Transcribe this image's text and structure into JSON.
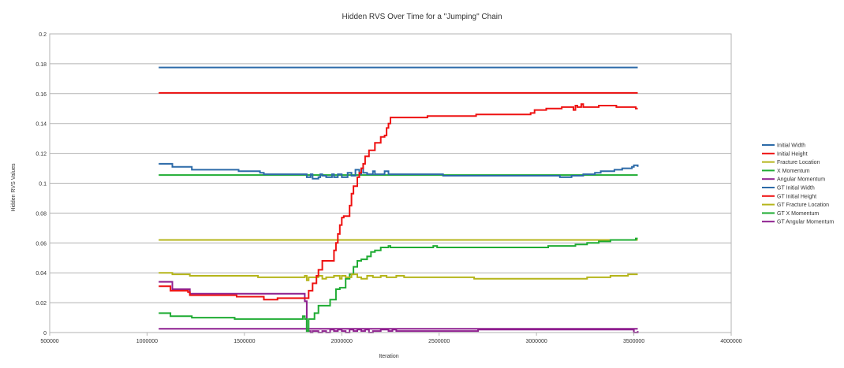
{
  "chart_data": {
    "type": "line",
    "title": "Hidden RVS Over Time for a \"Jumping\" Chain",
    "xlabel": "Iteration",
    "ylabel": "Hidden RVS Values",
    "xlim": [
      500000,
      4000000
    ],
    "ylim": [
      0,
      0.2
    ],
    "x_ticks": [
      500000,
      1000000,
      1500000,
      2000000,
      2500000,
      3000000,
      3500000,
      4000000
    ],
    "x_tick_labels": [
      "500000",
      "1000000",
      "1500000",
      "2000000",
      "2500000",
      "3000000",
      "3500000",
      "4000000"
    ],
    "y_ticks": [
      0,
      0.02,
      0.04,
      0.06,
      0.08,
      0.1,
      0.12,
      0.14,
      0.16,
      0.18,
      0.2
    ],
    "y_tick_labels": [
      "0",
      "0.02",
      "0.04",
      "0.06",
      "0.08",
      "0.1",
      "0.12",
      "0.14",
      "0.16",
      "0.18",
      "0.2"
    ],
    "grid": "horizontal",
    "legend": "right",
    "series": [
      {
        "name": "Initial Width",
        "color": "#2c6aa8",
        "points": [
          [
            1060000,
            0.113
          ],
          [
            1120000,
            0.113
          ],
          [
            1130000,
            0.111
          ],
          [
            1220000,
            0.111
          ],
          [
            1230000,
            0.109
          ],
          [
            1450000,
            0.109
          ],
          [
            1470000,
            0.108
          ],
          [
            1560000,
            0.108
          ],
          [
            1580000,
            0.107
          ],
          [
            1600000,
            0.106
          ],
          [
            1800000,
            0.106
          ],
          [
            1820000,
            0.104
          ],
          [
            1840000,
            0.106
          ],
          [
            1850000,
            0.103
          ],
          [
            1880000,
            0.104
          ],
          [
            1890000,
            0.106
          ],
          [
            1900000,
            0.105
          ],
          [
            1920000,
            0.104
          ],
          [
            1950000,
            0.106
          ],
          [
            1960000,
            0.104
          ],
          [
            1980000,
            0.106
          ],
          [
            2000000,
            0.104
          ],
          [
            2030000,
            0.107
          ],
          [
            2050000,
            0.105
          ],
          [
            2070000,
            0.109
          ],
          [
            2090000,
            0.106
          ],
          [
            2100000,
            0.11
          ],
          [
            2110000,
            0.107
          ],
          [
            2130000,
            0.106
          ],
          [
            2160000,
            0.108
          ],
          [
            2170000,
            0.106
          ],
          [
            2200000,
            0.106
          ],
          [
            2220000,
            0.108
          ],
          [
            2240000,
            0.106
          ],
          [
            2500000,
            0.106
          ],
          [
            2520000,
            0.105
          ],
          [
            3100000,
            0.105
          ],
          [
            3120000,
            0.104
          ],
          [
            3180000,
            0.105
          ],
          [
            3240000,
            0.106
          ],
          [
            3300000,
            0.107
          ],
          [
            3330000,
            0.108
          ],
          [
            3400000,
            0.109
          ],
          [
            3440000,
            0.11
          ],
          [
            3490000,
            0.111
          ],
          [
            3500000,
            0.112
          ],
          [
            3520000,
            0.111
          ]
        ]
      },
      {
        "name": "Initial Height",
        "color": "#ee1111",
        "points": [
          [
            1060000,
            0.031
          ],
          [
            1110000,
            0.031
          ],
          [
            1120000,
            0.028
          ],
          [
            1210000,
            0.027
          ],
          [
            1220000,
            0.025
          ],
          [
            1450000,
            0.025
          ],
          [
            1460000,
            0.024
          ],
          [
            1590000,
            0.024
          ],
          [
            1600000,
            0.022
          ],
          [
            1660000,
            0.022
          ],
          [
            1670000,
            0.023
          ],
          [
            1810000,
            0.023
          ],
          [
            1830000,
            0.028
          ],
          [
            1850000,
            0.033
          ],
          [
            1870000,
            0.038
          ],
          [
            1880000,
            0.042
          ],
          [
            1900000,
            0.048
          ],
          [
            1950000,
            0.048
          ],
          [
            1960000,
            0.055
          ],
          [
            1970000,
            0.06
          ],
          [
            1980000,
            0.066
          ],
          [
            1990000,
            0.072
          ],
          [
            2000000,
            0.077
          ],
          [
            2010000,
            0.078
          ],
          [
            2030000,
            0.078
          ],
          [
            2040000,
            0.085
          ],
          [
            2050000,
            0.093
          ],
          [
            2060000,
            0.098
          ],
          [
            2080000,
            0.104
          ],
          [
            2090000,
            0.107
          ],
          [
            2100000,
            0.11
          ],
          [
            2110000,
            0.113
          ],
          [
            2120000,
            0.118
          ],
          [
            2140000,
            0.122
          ],
          [
            2160000,
            0.122
          ],
          [
            2170000,
            0.127
          ],
          [
            2190000,
            0.127
          ],
          [
            2200000,
            0.131
          ],
          [
            2220000,
            0.132
          ],
          [
            2230000,
            0.137
          ],
          [
            2240000,
            0.14
          ],
          [
            2250000,
            0.144
          ],
          [
            2260000,
            0.144
          ],
          [
            2430000,
            0.144
          ],
          [
            2440000,
            0.145
          ],
          [
            2680000,
            0.145
          ],
          [
            2690000,
            0.146
          ],
          [
            2950000,
            0.146
          ],
          [
            2970000,
            0.147
          ],
          [
            2990000,
            0.149
          ],
          [
            3030000,
            0.149
          ],
          [
            3050000,
            0.15
          ],
          [
            3100000,
            0.15
          ],
          [
            3130000,
            0.151
          ],
          [
            3190000,
            0.149
          ],
          [
            3200000,
            0.152
          ],
          [
            3210000,
            0.151
          ],
          [
            3230000,
            0.153
          ],
          [
            3240000,
            0.151
          ],
          [
            3320000,
            0.152
          ],
          [
            3400000,
            0.152
          ],
          [
            3410000,
            0.151
          ],
          [
            3500000,
            0.151
          ],
          [
            3510000,
            0.15
          ],
          [
            3520000,
            0.15
          ]
        ]
      },
      {
        "name": "Fracture Location",
        "color": "#b5b51a",
        "points": [
          [
            1060000,
            0.04
          ],
          [
            1120000,
            0.04
          ],
          [
            1130000,
            0.039
          ],
          [
            1210000,
            0.039
          ],
          [
            1220000,
            0.038
          ],
          [
            1550000,
            0.038
          ],
          [
            1570000,
            0.037
          ],
          [
            1800000,
            0.037
          ],
          [
            1810000,
            0.038
          ],
          [
            1820000,
            0.035
          ],
          [
            1830000,
            0.037
          ],
          [
            1880000,
            0.038
          ],
          [
            1900000,
            0.036
          ],
          [
            1920000,
            0.037
          ],
          [
            1950000,
            0.037
          ],
          [
            1960000,
            0.038
          ],
          [
            1990000,
            0.036
          ],
          [
            2000000,
            0.038
          ],
          [
            2020000,
            0.037
          ],
          [
            2050000,
            0.039
          ],
          [
            2080000,
            0.037
          ],
          [
            2100000,
            0.036
          ],
          [
            2130000,
            0.038
          ],
          [
            2160000,
            0.037
          ],
          [
            2200000,
            0.038
          ],
          [
            2230000,
            0.037
          ],
          [
            2270000,
            0.037
          ],
          [
            2280000,
            0.038
          ],
          [
            2320000,
            0.037
          ],
          [
            2650000,
            0.037
          ],
          [
            2680000,
            0.036
          ],
          [
            3180000,
            0.036
          ],
          [
            3260000,
            0.037
          ],
          [
            3380000,
            0.038
          ],
          [
            3470000,
            0.039
          ],
          [
            3520000,
            0.039
          ]
        ]
      },
      {
        "name": "X Momentum",
        "color": "#1fac33",
        "points": [
          [
            1060000,
            0.013
          ],
          [
            1110000,
            0.013
          ],
          [
            1120000,
            0.011
          ],
          [
            1220000,
            0.011
          ],
          [
            1230000,
            0.01
          ],
          [
            1440000,
            0.01
          ],
          [
            1450000,
            0.009
          ],
          [
            1790000,
            0.009
          ],
          [
            1800000,
            0.011
          ],
          [
            1810000,
            0.009
          ],
          [
            1820000,
            0.001
          ],
          [
            1830000,
            0.009
          ],
          [
            1860000,
            0.013
          ],
          [
            1880000,
            0.018
          ],
          [
            1930000,
            0.018
          ],
          [
            1940000,
            0.022
          ],
          [
            1960000,
            0.022
          ],
          [
            1970000,
            0.029
          ],
          [
            1990000,
            0.03
          ],
          [
            2010000,
            0.03
          ],
          [
            2020000,
            0.036
          ],
          [
            2040000,
            0.039
          ],
          [
            2060000,
            0.044
          ],
          [
            2080000,
            0.048
          ],
          [
            2100000,
            0.049
          ],
          [
            2130000,
            0.051
          ],
          [
            2150000,
            0.054
          ],
          [
            2170000,
            0.055
          ],
          [
            2200000,
            0.057
          ],
          [
            2240000,
            0.058
          ],
          [
            2250000,
            0.057
          ],
          [
            2450000,
            0.057
          ],
          [
            2470000,
            0.058
          ],
          [
            2490000,
            0.057
          ],
          [
            3020000,
            0.057
          ],
          [
            3060000,
            0.058
          ],
          [
            3160000,
            0.058
          ],
          [
            3200000,
            0.059
          ],
          [
            3260000,
            0.06
          ],
          [
            3320000,
            0.061
          ],
          [
            3380000,
            0.062
          ],
          [
            3450000,
            0.062
          ],
          [
            3490000,
            0.062
          ],
          [
            3510000,
            0.063
          ],
          [
            3520000,
            0.063
          ]
        ]
      },
      {
        "name": "Angular Momentum",
        "color": "#8e1f8f",
        "points": [
          [
            1060000,
            0.034
          ],
          [
            1120000,
            0.034
          ],
          [
            1130000,
            0.029
          ],
          [
            1210000,
            0.029
          ],
          [
            1220000,
            0.026
          ],
          [
            1800000,
            0.026
          ],
          [
            1810000,
            0.021
          ],
          [
            1820000,
            0.001
          ],
          [
            1840000,
            0.0
          ],
          [
            1850000,
            0.001
          ],
          [
            1880000,
            0.0
          ],
          [
            1900000,
            0.001
          ],
          [
            1920000,
            0.0
          ],
          [
            1940000,
            0.002
          ],
          [
            1960000,
            0.001
          ],
          [
            1980000,
            0.002
          ],
          [
            2000000,
            0.001
          ],
          [
            2020000,
            0.0
          ],
          [
            2040000,
            0.002
          ],
          [
            2060000,
            0.001
          ],
          [
            2080000,
            0.002
          ],
          [
            2100000,
            0.001
          ],
          [
            2120000,
            0.002
          ],
          [
            2140000,
            0.0
          ],
          [
            2160000,
            0.001
          ],
          [
            2200000,
            0.002
          ],
          [
            2240000,
            0.001
          ],
          [
            2260000,
            0.002
          ],
          [
            2280000,
            0.001
          ],
          [
            2500000,
            0.001
          ],
          [
            2680000,
            0.001
          ],
          [
            2700000,
            0.002
          ],
          [
            3300000,
            0.002
          ],
          [
            3340000,
            0.002
          ],
          [
            3480000,
            0.002
          ],
          [
            3500000,
            0.0
          ],
          [
            3520000,
            0.001
          ]
        ]
      },
      {
        "name": "GT Initial Width",
        "color": "#2c6aa8",
        "points": [
          [
            1060000,
            0.1775
          ],
          [
            3520000,
            0.1775
          ]
        ]
      },
      {
        "name": "GT Initial Height",
        "color": "#ee1111",
        "points": [
          [
            1060000,
            0.1605
          ],
          [
            3520000,
            0.1605
          ]
        ]
      },
      {
        "name": "GT Fracture Location",
        "color": "#b5b51a",
        "points": [
          [
            1060000,
            0.062
          ],
          [
            3520000,
            0.062
          ]
        ]
      },
      {
        "name": "GT X Momentum",
        "color": "#1fac33",
        "points": [
          [
            1060000,
            0.1055
          ],
          [
            3520000,
            0.1055
          ]
        ]
      },
      {
        "name": "GT Angular Momentum",
        "color": "#8e1f8f",
        "points": [
          [
            1060000,
            0.0025
          ],
          [
            3520000,
            0.0025
          ]
        ]
      }
    ]
  }
}
